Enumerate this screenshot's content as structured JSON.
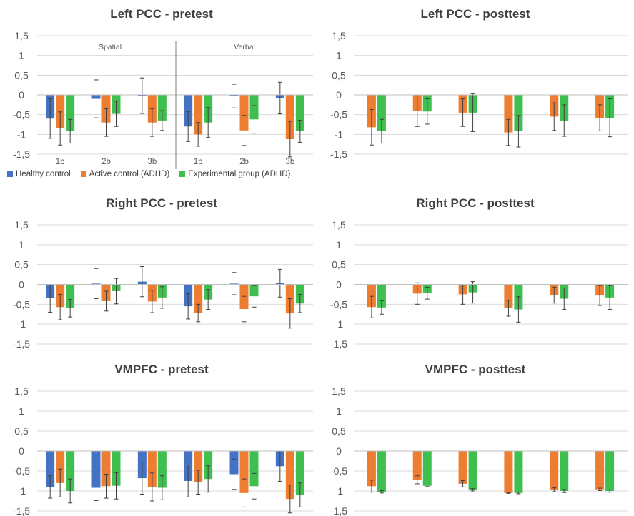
{
  "colors": {
    "healthy": "#4472C4",
    "active": "#ED7D31",
    "experimental": "#3FBF50",
    "axis_text": "#595959",
    "grid": "#D9D9D9",
    "title": "#404040"
  },
  "legend": [
    {
      "label": "Healthy control",
      "color": "#4472C4"
    },
    {
      "label": "Active control  (ADHD)",
      "color": "#ED7D31"
    },
    {
      "label": "Experimental group (ADHD)",
      "color": "#3FBF50"
    }
  ],
  "chart_data": [
    {
      "type": "bar",
      "title": "Left PCC - pretest",
      "categories": [
        "1b",
        "2b",
        "3b",
        "1b",
        "2b",
        "3b"
      ],
      "group_labels": [
        "Spatial",
        "Verbal"
      ],
      "ylim": [
        -1.5,
        1.5
      ],
      "yticks": [
        "1,5",
        "1",
        "0,5",
        "0",
        "-0,5",
        "-1",
        "-1,5"
      ],
      "series": [
        {
          "name": "Healthy control",
          "values": [
            -0.6,
            -0.1,
            -0.02,
            -0.8,
            -0.03,
            -0.08
          ],
          "errors": [
            0.5,
            0.48,
            0.45,
            0.38,
            0.3,
            0.4
          ]
        },
        {
          "name": "Active control  (ADHD)",
          "values": [
            -0.85,
            -0.7,
            -0.7,
            -1.0,
            -0.9,
            -1.12
          ],
          "errors": [
            0.42,
            0.35,
            0.35,
            0.3,
            0.38,
            0.45
          ]
        },
        {
          "name": "Experimental group (ADHD)",
          "values": [
            -0.92,
            -0.48,
            -0.65,
            -0.7,
            -0.62,
            -0.92
          ],
          "errors": [
            0.3,
            0.32,
            0.25,
            0.38,
            0.35,
            0.28
          ]
        }
      ]
    },
    {
      "type": "bar",
      "title": "Left PCC - posttest",
      "categories": [
        "",
        "",
        "",
        "",
        "",
        ""
      ],
      "ylim": [
        -1.5,
        1.5
      ],
      "yticks": [
        "1,5",
        "1",
        "0,5",
        "0",
        "-0,5",
        "-1",
        "-1,5"
      ],
      "series": [
        {
          "name": "Active control  (ADHD)",
          "values": [
            -0.82,
            -0.4,
            -0.45,
            -0.95,
            -0.55,
            -0.58
          ],
          "errors": [
            0.45,
            0.4,
            0.35,
            0.33,
            0.35,
            0.33
          ]
        },
        {
          "name": "Experimental group (ADHD)",
          "values": [
            -0.92,
            -0.42,
            -0.45,
            -0.92,
            -0.65,
            -0.58
          ],
          "errors": [
            0.3,
            0.32,
            0.48,
            0.4,
            0.4,
            0.48
          ]
        }
      ]
    },
    {
      "type": "bar",
      "title": "Right PCC - pretest",
      "categories": [
        "",
        "",
        "",
        "",
        "",
        ""
      ],
      "ylim": [
        -1.5,
        1.5
      ],
      "yticks": [
        "1,5",
        "1",
        "0,5",
        "0",
        "-0,5",
        "-1",
        "-1,5"
      ],
      "series": [
        {
          "name": "Healthy control",
          "values": [
            -0.35,
            0.02,
            0.07,
            -0.55,
            0.02,
            0.03
          ],
          "errors": [
            0.35,
            0.38,
            0.38,
            0.32,
            0.28,
            0.35
          ]
        },
        {
          "name": "Active control  (ADHD)",
          "values": [
            -0.57,
            -0.42,
            -0.43,
            -0.72,
            -0.62,
            -0.73
          ],
          "errors": [
            0.32,
            0.25,
            0.28,
            0.22,
            0.32,
            0.37
          ]
        },
        {
          "name": "Experimental group (ADHD)",
          "values": [
            -0.6,
            -0.17,
            -0.33,
            -0.38,
            -0.3,
            -0.48
          ],
          "errors": [
            0.22,
            0.32,
            0.27,
            0.25,
            0.27,
            0.23
          ]
        }
      ]
    },
    {
      "type": "bar",
      "title": "Right PCC - posttest",
      "categories": [
        "",
        "",
        "",
        "",
        "",
        ""
      ],
      "ylim": [
        -1.5,
        1.5
      ],
      "yticks": [
        "1,5",
        "1",
        "0,5",
        "0",
        "-0,5",
        "-1",
        "-1,5"
      ],
      "series": [
        {
          "name": "Active control  (ADHD)",
          "values": [
            -0.57,
            -0.23,
            -0.25,
            -0.6,
            -0.27,
            -0.28
          ],
          "errors": [
            0.27,
            0.27,
            0.25,
            0.2,
            0.2,
            0.25
          ]
        },
        {
          "name": "Experimental group (ADHD)",
          "values": [
            -0.58,
            -0.22,
            -0.2,
            -0.63,
            -0.36,
            -0.33
          ],
          "errors": [
            0.17,
            0.15,
            0.27,
            0.32,
            0.27,
            0.3
          ]
        }
      ]
    },
    {
      "type": "bar",
      "title": "VMPFC - pretest",
      "categories": [
        "",
        "",
        "",
        "",
        "",
        ""
      ],
      "ylim": [
        -1.5,
        1.5
      ],
      "yticks": [
        "1,5",
        "1",
        "0,5",
        "0",
        "-0,5",
        "-1",
        "-1,5"
      ],
      "series": [
        {
          "name": "Healthy control",
          "values": [
            -0.9,
            -0.92,
            -0.68,
            -0.75,
            -0.58,
            -0.38
          ],
          "errors": [
            0.28,
            0.32,
            0.4,
            0.4,
            0.38,
            0.38
          ]
        },
        {
          "name": "Active control  (ADHD)",
          "values": [
            -0.8,
            -0.88,
            -0.9,
            -0.78,
            -1.05,
            -1.2
          ],
          "errors": [
            0.35,
            0.3,
            0.35,
            0.3,
            0.35,
            0.35
          ]
        },
        {
          "name": "Experimental group (ADHD)",
          "values": [
            -1.0,
            -0.87,
            -0.92,
            -0.7,
            -0.88,
            -1.1
          ],
          "errors": [
            0.3,
            0.33,
            0.3,
            0.33,
            0.32,
            0.3
          ]
        }
      ]
    },
    {
      "type": "bar",
      "title": "VMPFC - posttest",
      "categories": [
        "",
        "",
        "",
        "",
        "",
        ""
      ],
      "ylim": [
        -1.5,
        1.5
      ],
      "yticks": [
        "1,5",
        "1",
        "0,5",
        "0",
        "-0,5",
        "-1",
        "-1,5"
      ],
      "series": [
        {
          "name": "Active control  (ADHD)",
          "values": [
            -0.88,
            -0.72,
            -0.82,
            -1.05,
            -0.97,
            -0.96
          ],
          "errors": [
            0.15,
            0.1,
            0.08,
            0.01,
            0.05,
            0.03
          ]
        },
        {
          "name": "Experimental group (ADHD)",
          "values": [
            -1.02,
            -0.87,
            -0.97,
            -1.05,
            -1.0,
            -1.0
          ],
          "errors": [
            0.03,
            0.02,
            0.03,
            0.02,
            0.04,
            0.03
          ]
        }
      ]
    }
  ]
}
